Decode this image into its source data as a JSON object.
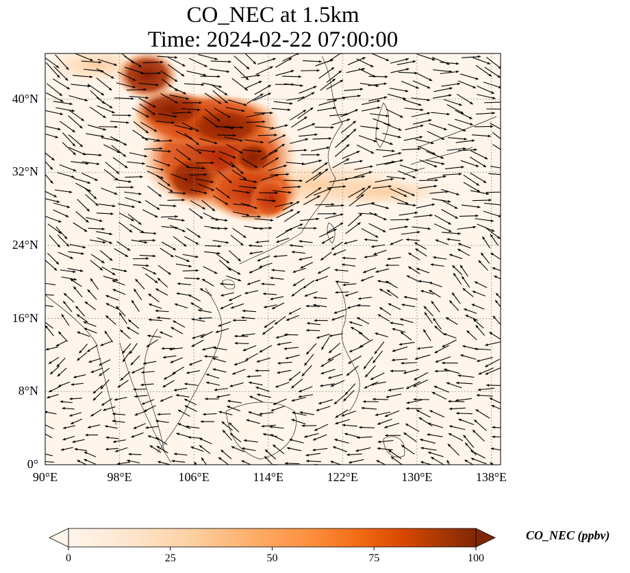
{
  "title": {
    "line1": "CO_NEC at 1.5km",
    "line2": "Time: 2024-02-22 07:00:00"
  },
  "map": {
    "lon_range": [
      90,
      139
    ],
    "lat_range": [
      0,
      45
    ],
    "lat_ticks": [
      {
        "value": 0,
        "label": "0°"
      },
      {
        "value": 8,
        "label": "8°N"
      },
      {
        "value": 16,
        "label": "16°N"
      },
      {
        "value": 24,
        "label": "24°N"
      },
      {
        "value": 32,
        "label": "32°N"
      },
      {
        "value": 40,
        "label": "40°N"
      }
    ],
    "lon_ticks": [
      {
        "value": 90,
        "label": "90°E"
      },
      {
        "value": 98,
        "label": "98°E"
      },
      {
        "value": 106,
        "label": "106°E"
      },
      {
        "value": 114,
        "label": "114°E"
      },
      {
        "value": 122,
        "label": "122°E"
      },
      {
        "value": 130,
        "label": "130°E"
      },
      {
        "value": 138,
        "label": "138°E"
      }
    ],
    "gridlines": "dotted",
    "background_color": "#fff5eb"
  },
  "colorbar": {
    "label": "CO_NEC (ppbv)",
    "ticks": [
      "0",
      "25",
      "50",
      "75",
      "100"
    ],
    "range": [
      0,
      100
    ],
    "colormap": [
      "#fff5eb",
      "#fee6ce",
      "#fdd0a2",
      "#fdae6b",
      "#fd8d3c",
      "#f16913",
      "#d94801",
      "#a63603",
      "#7f2704"
    ]
  }
}
